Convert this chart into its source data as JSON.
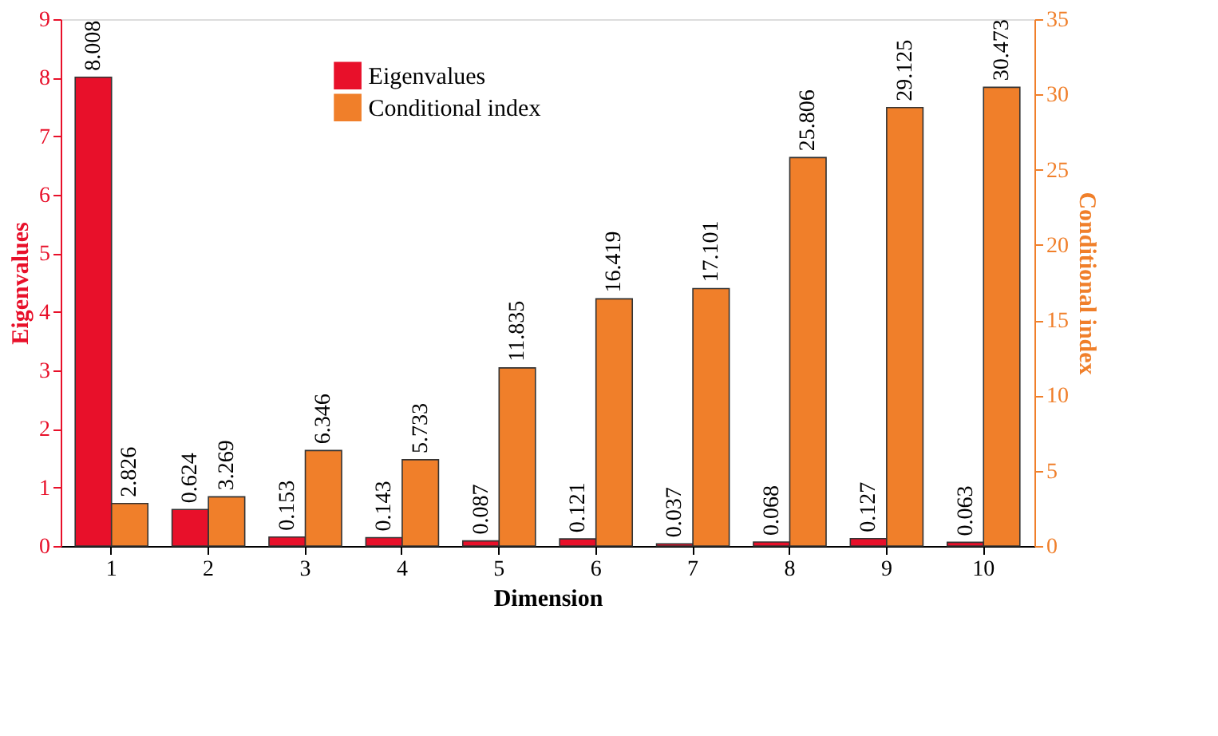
{
  "chart_data": {
    "type": "bar",
    "xlabel": "Dimension",
    "ylabel": "Eigenvalues",
    "y2label": "Conditional index",
    "categories": [
      "1",
      "2",
      "3",
      "4",
      "5",
      "6",
      "7",
      "8",
      "9",
      "10"
    ],
    "series": [
      {
        "name": "Eigenvalues",
        "color": "#e8102a",
        "values": [
          8.008,
          0.624,
          0.153,
          0.143,
          0.087,
          0.121,
          0.037,
          0.068,
          0.127,
          0.063
        ]
      },
      {
        "name": "Conditional index",
        "color": "#f07f2a",
        "axis": "y2",
        "values": [
          2.826,
          3.269,
          6.346,
          5.733,
          11.835,
          16.419,
          17.101,
          25.806,
          29.125,
          30.473
        ]
      }
    ],
    "ylim": [
      0,
      9
    ],
    "yticks": [
      0,
      1,
      2,
      3,
      4,
      5,
      6,
      7,
      8,
      9
    ],
    "y2lim": [
      0,
      35
    ],
    "y2ticks": [
      0,
      5,
      10,
      15,
      20,
      25,
      30,
      35
    ],
    "data_labels": true,
    "legend": "top left",
    "grid": false
  }
}
